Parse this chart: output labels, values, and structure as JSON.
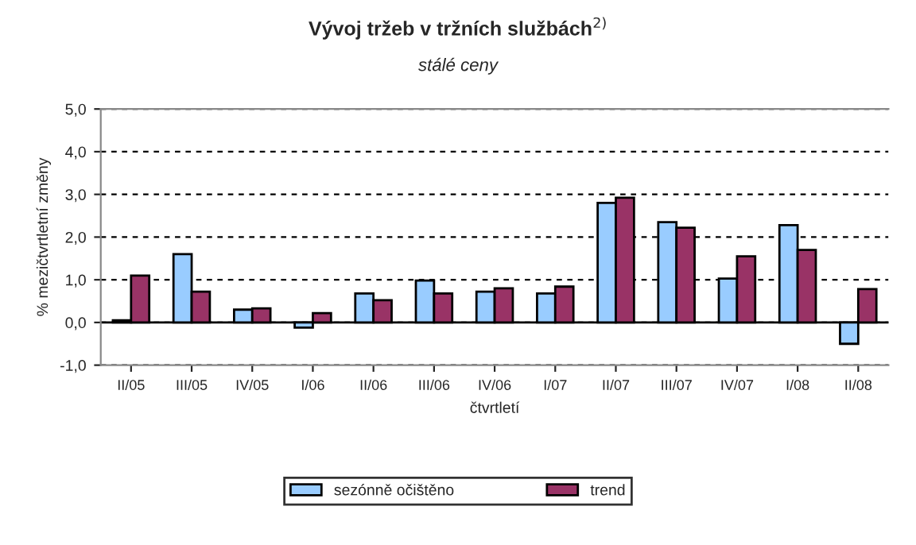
{
  "chart_data": {
    "type": "bar",
    "title": "Vývoj tržeb v tržních službách$^{2)}$",
    "subtitle": "stálé ceny",
    "xlabel": "čtvrtletí",
    "ylabel": "% mezičtvrtletní změny",
    "categories": [
      "II/05",
      "III/05",
      "IV/05",
      "I/06",
      "II/06",
      "III/06",
      "IV/06",
      "I/07",
      "II/07",
      "III/07",
      "IV/07",
      "I/08",
      "II/08"
    ],
    "series": [
      {
        "name": "sezónně očištěno",
        "color": "#99ccff",
        "values": [
          0.05,
          1.6,
          0.3,
          -0.12,
          0.68,
          0.98,
          0.72,
          0.68,
          2.8,
          2.35,
          1.03,
          2.28,
          -0.5
        ]
      },
      {
        "name": "trend",
        "color": "#993366",
        "values": [
          1.1,
          0.72,
          0.33,
          0.22,
          0.52,
          0.68,
          0.8,
          0.84,
          2.92,
          2.22,
          1.55,
          1.7,
          0.78
        ]
      }
    ],
    "ylim": [
      -1,
      5
    ],
    "yticks": [
      {
        "value": -1,
        "label": "-1,0"
      },
      {
        "value": 0,
        "label": "0,0"
      },
      {
        "value": 1,
        "label": "1,0"
      },
      {
        "value": 2,
        "label": "2,0"
      },
      {
        "value": 3,
        "label": "3,0"
      },
      {
        "value": 4,
        "label": "4,0"
      },
      {
        "value": 5,
        "label": "5,0"
      }
    ],
    "grid": "y",
    "legend": "bottom"
  }
}
